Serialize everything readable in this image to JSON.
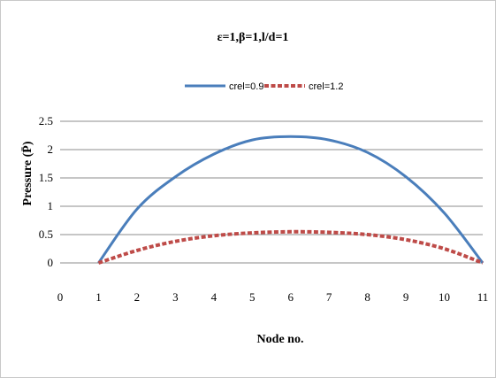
{
  "chart_data": {
    "type": "line",
    "title": "ε=1,β=1,l/d=1",
    "xlabel": "Node no.",
    "ylabel": "Pressure (P̄)",
    "x_ticks": [
      "0",
      "1",
      "2",
      "3",
      "4",
      "5",
      "6",
      "7",
      "8",
      "9",
      "10",
      "11"
    ],
    "y_ticks": [
      "0",
      "0.5",
      "1",
      "1.5",
      "2",
      "2.5"
    ],
    "xlim": [
      0,
      11
    ],
    "ylim": [
      0,
      2.5
    ],
    "grid": "horizontal",
    "legend_position": "top",
    "series": [
      {
        "name": "crel=0.9",
        "color": "#4a7ebb",
        "dash": "solid",
        "x": [
          1,
          2,
          3,
          4,
          5,
          6,
          7,
          8,
          9,
          10,
          11
        ],
        "values": [
          0,
          0.95,
          1.52,
          1.92,
          2.17,
          2.23,
          2.17,
          1.95,
          1.52,
          0.88,
          0
        ]
      },
      {
        "name": "crel=1.2",
        "color": "#be4b48",
        "dash": "dashed",
        "x": [
          1,
          2,
          3,
          4,
          5,
          6,
          7,
          8,
          9,
          10,
          11
        ],
        "values": [
          0,
          0.22,
          0.38,
          0.48,
          0.53,
          0.55,
          0.54,
          0.5,
          0.41,
          0.25,
          0
        ]
      }
    ]
  }
}
